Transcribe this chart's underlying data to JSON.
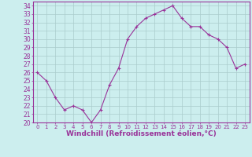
{
  "x": [
    0,
    1,
    2,
    3,
    4,
    5,
    6,
    7,
    8,
    9,
    10,
    11,
    12,
    13,
    14,
    15,
    16,
    17,
    18,
    19,
    20,
    21,
    22,
    23
  ],
  "y": [
    26,
    25,
    23,
    21.5,
    22,
    21.5,
    20,
    21.5,
    24.5,
    26.5,
    30,
    31.5,
    32.5,
    33,
    33.5,
    34,
    32.5,
    31.5,
    31.5,
    30.5,
    30,
    29,
    26.5,
    27
  ],
  "line_color": "#993399",
  "marker": "+",
  "marker_size": 3,
  "background_color": "#cceeee",
  "grid_color": "#aacccc",
  "xlabel": "Windchill (Refroidissement éolien,°C)",
  "xlim": [
    -0.5,
    23.5
  ],
  "ylim": [
    20,
    34.5
  ],
  "yticks": [
    20,
    21,
    22,
    23,
    24,
    25,
    26,
    27,
    28,
    29,
    30,
    31,
    32,
    33,
    34
  ],
  "xticks": [
    0,
    1,
    2,
    3,
    4,
    5,
    6,
    7,
    8,
    9,
    10,
    11,
    12,
    13,
    14,
    15,
    16,
    17,
    18,
    19,
    20,
    21,
    22,
    23
  ],
  "tick_color": "#993399",
  "spine_color": "#993399",
  "xlabel_fontsize": 6.5,
  "xlabel_fontweight": "bold",
  "ytick_fontsize": 5.5,
  "xtick_fontsize": 5.0
}
